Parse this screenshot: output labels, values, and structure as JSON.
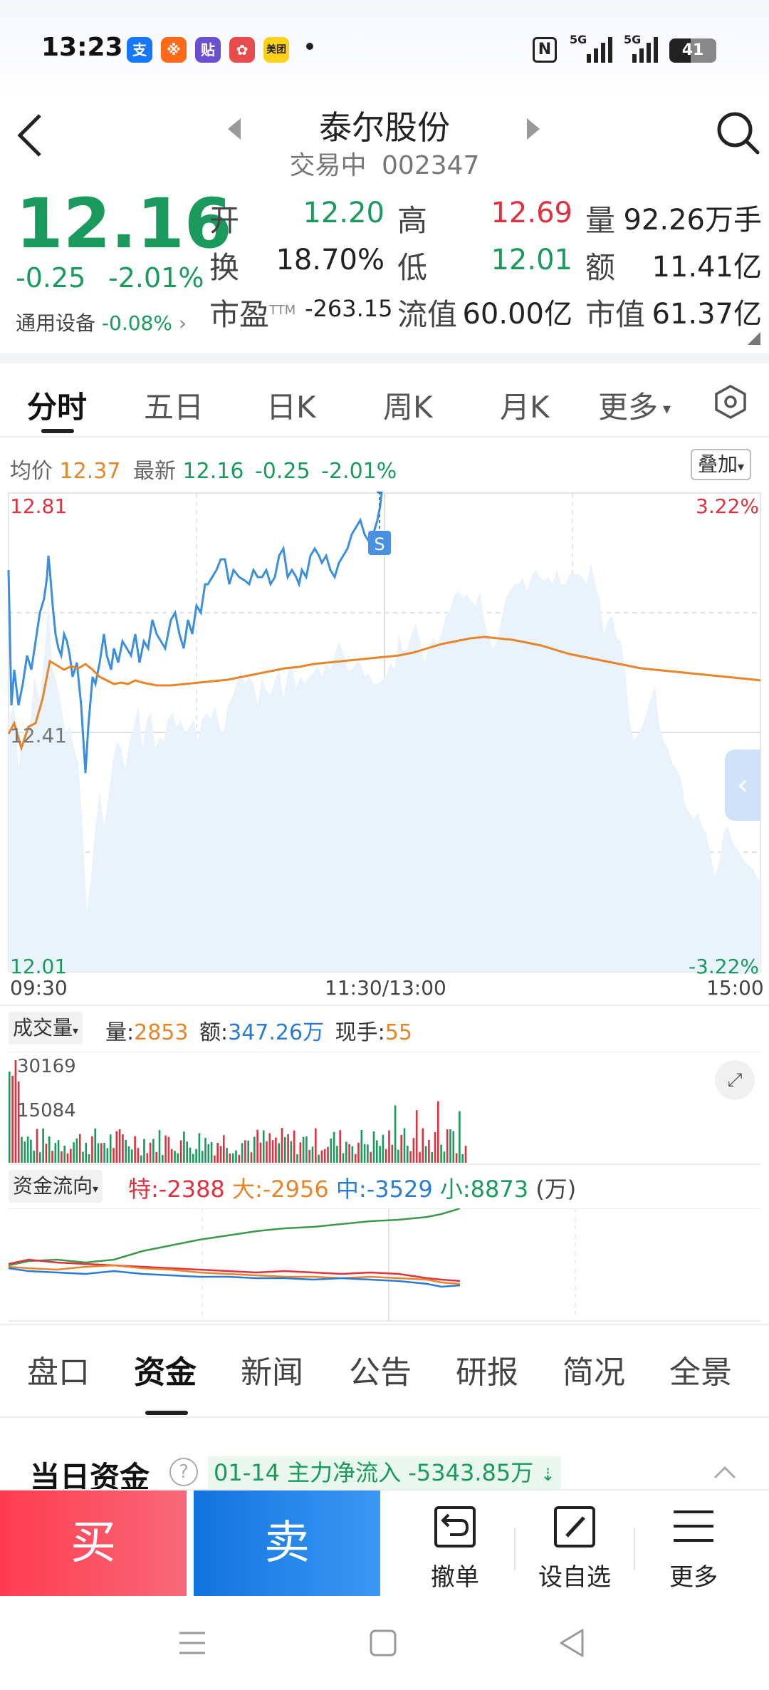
{
  "status": {
    "time": "13:23",
    "battery": "41",
    "net1": "5G",
    "net2": "5G"
  },
  "header": {
    "name": "泰尔股份",
    "status": "交易中",
    "code": "002347"
  },
  "quote": {
    "price": "12.16",
    "change": "-0.25",
    "change_pct": "-2.01%",
    "sector_name": "通用设备",
    "sector_pct": "-0.08%",
    "open_label": "开",
    "open": "12.20",
    "high_label": "高",
    "high": "12.69",
    "vol_label": "量",
    "vol": "92.26万手",
    "turnover_label": "换",
    "turnover": "18.70%",
    "low_label": "低",
    "low": "12.01",
    "amount_label": "额",
    "amount": "11.41亿",
    "pe_label": "市盈",
    "pe_sup": "TTM",
    "pe": "-263.15",
    "float_label": "流值",
    "float_val": "60.00亿",
    "cap_label": "市值",
    "cap": "61.37亿"
  },
  "ktabs": [
    "分时",
    "五日",
    "日K",
    "周K",
    "月K",
    "更多"
  ],
  "intraday": {
    "avg_label": "均价",
    "avg": "12.37",
    "latest_label": "最新",
    "latest": "12.16",
    "chg": "-0.25",
    "chg_pct": "-2.01%",
    "overlay": "叠加",
    "y_top": "12.81",
    "y_mid": "12.41",
    "y_bot": "12.01",
    "pct_top": "3.22%",
    "pct_bot": "-3.22%",
    "t_start": "09:30",
    "t_mid": "11:30/13:00",
    "t_end": "15:00",
    "marker": "S"
  },
  "volume": {
    "label": "成交量",
    "v_label": "量:",
    "v": "2853",
    "a_label": "额:",
    "a": "347.26万",
    "h_label": "现手:",
    "h": "55",
    "max": "30169",
    "mid": "15084"
  },
  "flow": {
    "label": "资金流向",
    "te_label": "特:",
    "te": "-2388",
    "da_label": "大:",
    "da": "-2956",
    "zhong_label": "中:",
    "zhong": "-3529",
    "xiao_label": "小:",
    "xiao": "8873",
    "unit": "(万)"
  },
  "btabs": [
    "盘口",
    "资金",
    "新闻",
    "公告",
    "研报",
    "简况",
    "全景"
  ],
  "daily": {
    "title": "当日资金",
    "date": "01-14",
    "label": "主力净流入",
    "value": "-5343.85万"
  },
  "actions": {
    "buy": "买",
    "sell": "卖",
    "cancel": "撤单",
    "watch": "设自选",
    "more": "更多"
  },
  "colors": {
    "up": "#e0313f",
    "down": "#1a9a5c",
    "price_line": "#3b8fdc",
    "avg_line": "#e8852a",
    "buy": "#f2475a",
    "sell": "#1f7fe0"
  }
}
